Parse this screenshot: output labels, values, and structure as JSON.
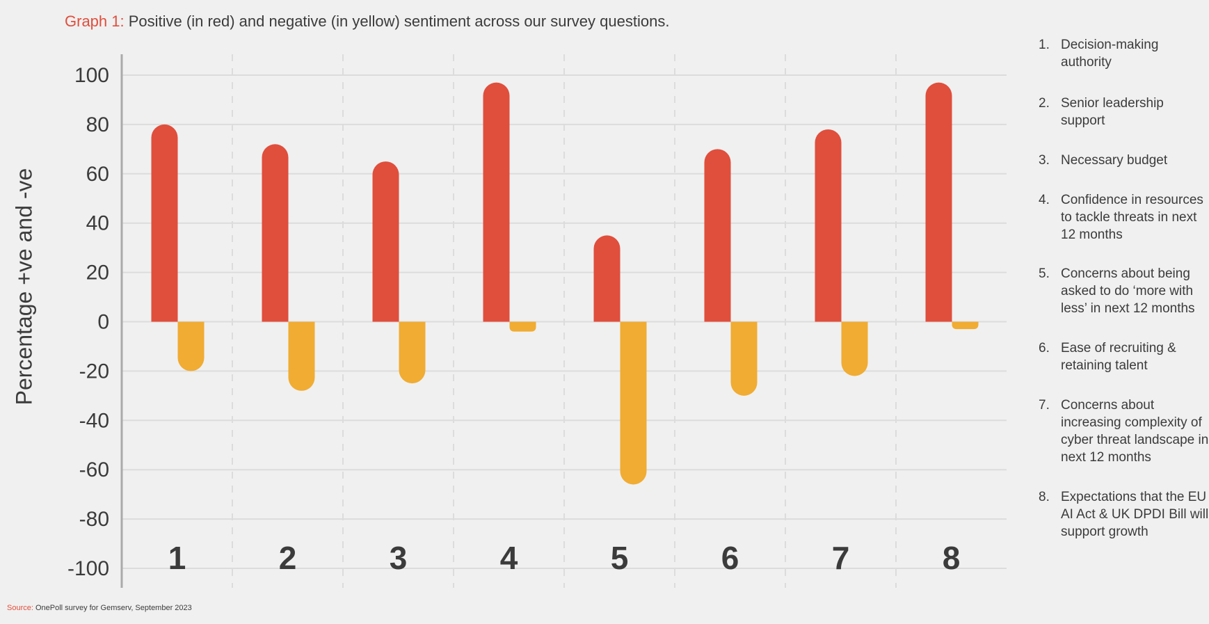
{
  "header": {
    "title_prefix": "Graph 1:",
    "title_text": "Positive (in red) and negative (in yellow) sentiment across our survey questions."
  },
  "footer": {
    "source_prefix": "Source:",
    "source_text": "OnePoll survey for Gemserv, September 2023"
  },
  "legend": {
    "items": [
      {
        "num": "1.",
        "text": "Decision-making authority"
      },
      {
        "num": "2.",
        "text": "Senior leadership support"
      },
      {
        "num": "3.",
        "text": "Necessary budget"
      },
      {
        "num": "4.",
        "text": "Confidence in resources to tackle threats in next 12 months"
      },
      {
        "num": "5.",
        "text": "Concerns about being asked to do ‘more with less’ in next 12 months"
      },
      {
        "num": "6.",
        "text": "Ease of recruiting & retaining talent"
      },
      {
        "num": "7.",
        "text": "Concerns about increasing complexity of cyber threat landscape in next 12 months"
      },
      {
        "num": "8.",
        "text": "Expectations that the EU AI Act & UK DPDI Bill will support growth"
      }
    ]
  },
  "chart_data": {
    "type": "bar",
    "categories": [
      "1",
      "2",
      "3",
      "4",
      "5",
      "6",
      "7",
      "8"
    ],
    "series": [
      {
        "values": [
          80,
          72,
          65,
          97,
          35,
          70,
          78,
          97
        ],
        "color": "#e04e3c"
      },
      {
        "values": [
          -20,
          -28,
          -25,
          -4,
          -66,
          -30,
          -22,
          -3
        ],
        "color": "#f0ac33"
      }
    ],
    "ylabel": "Percentage +ve and -ve",
    "ylim": [
      -100,
      100
    ],
    "yticks": [
      100,
      80,
      60,
      40,
      20,
      0,
      -20,
      -40,
      -60,
      -80,
      -100
    ],
    "grid": true
  }
}
